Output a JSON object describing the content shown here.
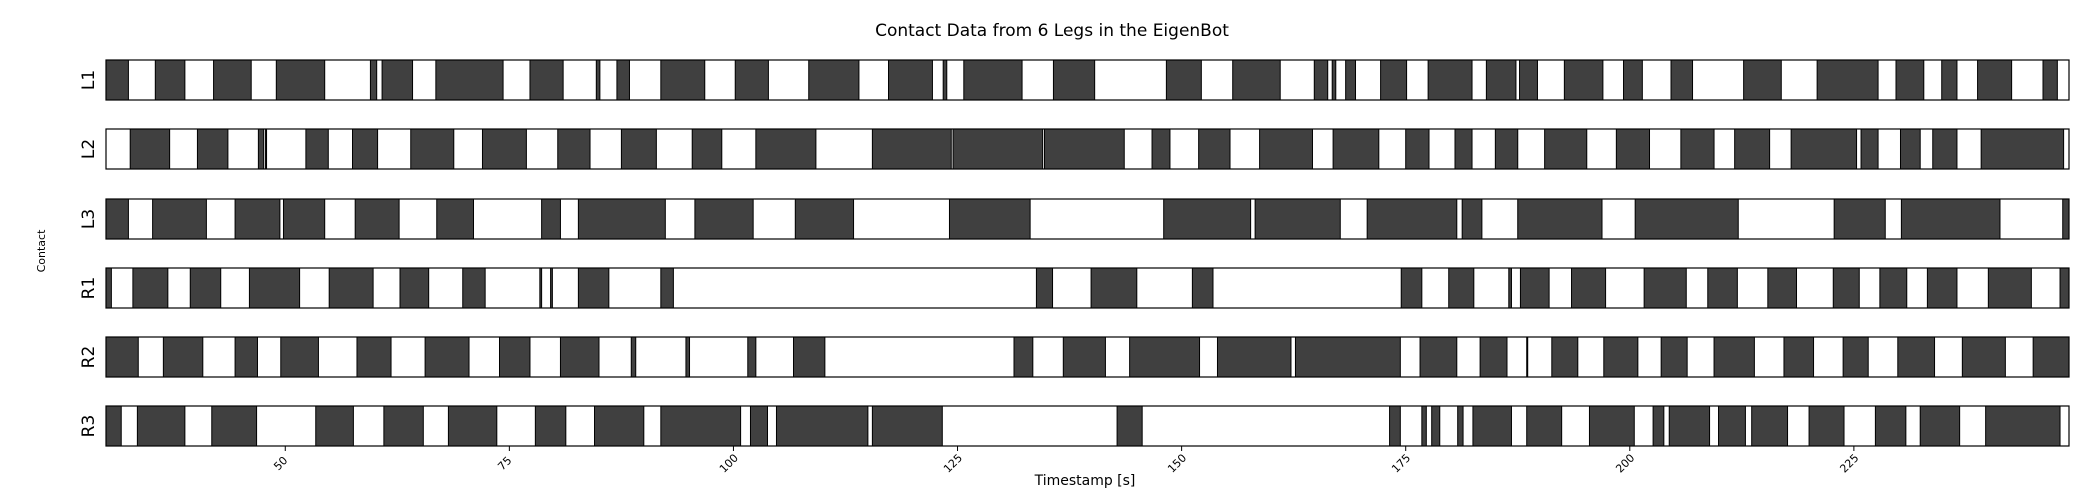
{
  "chart_data": {
    "type": "timeline",
    "title": "Contact Data from 6 Legs in the EigenBot",
    "xlabel": "Timestamp [s]",
    "ylabel": "Contact",
    "xlim": [
      30,
      249
    ],
    "xticks": [
      50,
      75,
      100,
      125,
      150,
      175,
      200,
      225
    ],
    "colors": {
      "contact": "#404040",
      "no_contact": "#ffffff",
      "border": "#000000"
    },
    "series": [
      {
        "name": "L1",
        "intervals": [
          [
            30.0,
            32.5
          ],
          [
            35.5,
            38.8
          ],
          [
            42.0,
            46.2
          ],
          [
            49.0,
            54.4
          ],
          [
            59.5,
            60.2
          ],
          [
            60.8,
            64.2
          ],
          [
            66.8,
            74.3
          ],
          [
            77.3,
            81.0
          ],
          [
            84.7,
            85.1
          ],
          [
            87.0,
            88.4
          ],
          [
            91.9,
            96.8
          ],
          [
            100.2,
            103.9
          ],
          [
            108.4,
            114.0
          ],
          [
            117.3,
            122.2
          ],
          [
            123.4,
            123.8
          ],
          [
            125.7,
            132.2
          ],
          [
            135.7,
            140.3
          ],
          [
            148.3,
            152.2
          ],
          [
            155.7,
            161.0
          ],
          [
            164.8,
            166.3
          ],
          [
            166.8,
            167.2
          ],
          [
            168.3,
            169.4
          ],
          [
            172.2,
            175.1
          ],
          [
            177.5,
            182.4
          ],
          [
            184.0,
            187.3
          ],
          [
            187.7,
            189.7
          ],
          [
            192.7,
            197.0
          ],
          [
            199.3,
            201.4
          ],
          [
            204.6,
            207.0
          ],
          [
            212.7,
            216.9
          ],
          [
            220.9,
            227.7
          ],
          [
            229.7,
            232.8
          ],
          [
            234.8,
            236.5
          ],
          [
            238.8,
            242.6
          ],
          [
            246.1,
            247.7
          ]
        ]
      },
      {
        "name": "L2",
        "intervals": [
          [
            32.7,
            37.1
          ],
          [
            40.2,
            43.6
          ],
          [
            47.0,
            47.6
          ],
          [
            47.8,
            47.9
          ],
          [
            52.3,
            54.8
          ],
          [
            57.5,
            60.3
          ],
          [
            64.0,
            68.8
          ],
          [
            72.0,
            76.9
          ],
          [
            80.4,
            84.0
          ],
          [
            87.5,
            91.4
          ],
          [
            95.4,
            98.7
          ],
          [
            102.5,
            109.2
          ],
          [
            115.5,
            124.3
          ],
          [
            124.5,
            134.5
          ],
          [
            134.7,
            143.6
          ],
          [
            146.7,
            148.7
          ],
          [
            151.9,
            155.4
          ],
          [
            158.7,
            164.6
          ],
          [
            166.9,
            172.0
          ],
          [
            175.0,
            177.6
          ],
          [
            180.5,
            182.4
          ],
          [
            185.0,
            187.5
          ],
          [
            190.5,
            195.2
          ],
          [
            198.5,
            202.2
          ],
          [
            205.7,
            209.4
          ],
          [
            211.7,
            215.6
          ],
          [
            218.0,
            225.3
          ],
          [
            225.8,
            227.7
          ],
          [
            230.2,
            232.4
          ],
          [
            233.8,
            236.5
          ],
          [
            239.2,
            248.4
          ]
        ]
      },
      {
        "name": "L3",
        "intervals": [
          [
            30.0,
            32.5
          ],
          [
            35.2,
            41.2
          ],
          [
            44.4,
            49.4
          ],
          [
            49.8,
            54.4
          ],
          [
            57.8,
            62.7
          ],
          [
            66.9,
            71.0
          ],
          [
            78.6,
            80.7
          ],
          [
            82.7,
            92.4
          ],
          [
            95.7,
            102.2
          ],
          [
            106.9,
            113.4
          ],
          [
            124.1,
            133.1
          ],
          [
            148.0,
            157.7
          ],
          [
            158.2,
            167.7
          ],
          [
            170.7,
            180.7
          ],
          [
            181.3,
            183.5
          ],
          [
            187.5,
            196.9
          ],
          [
            200.6,
            212.1
          ],
          [
            222.8,
            228.5
          ],
          [
            230.3,
            241.3
          ],
          [
            248.3,
            249.0
          ]
        ]
      },
      {
        "name": "R1",
        "intervals": [
          [
            30.0,
            30.6
          ],
          [
            33.0,
            36.9
          ],
          [
            39.4,
            42.8
          ],
          [
            46.0,
            51.6
          ],
          [
            54.9,
            59.8
          ],
          [
            62.8,
            66.0
          ],
          [
            69.8,
            72.3
          ],
          [
            78.4,
            78.6
          ],
          [
            79.6,
            79.8
          ],
          [
            82.7,
            86.1
          ],
          [
            91.9,
            93.3
          ],
          [
            133.8,
            135.6
          ],
          [
            139.9,
            145.0
          ],
          [
            151.2,
            153.5
          ],
          [
            174.5,
            176.8
          ],
          [
            179.8,
            182.6
          ],
          [
            186.5,
            186.8
          ],
          [
            187.8,
            191.0
          ],
          [
            193.5,
            197.3
          ],
          [
            201.6,
            206.3
          ],
          [
            208.7,
            212.0
          ],
          [
            215.4,
            218.6
          ],
          [
            222.7,
            225.6
          ],
          [
            227.9,
            230.9
          ],
          [
            233.2,
            236.5
          ],
          [
            240.0,
            244.8
          ],
          [
            248.0,
            249.0
          ]
        ]
      },
      {
        "name": "R2",
        "intervals": [
          [
            30.0,
            33.6
          ],
          [
            36.4,
            40.8
          ],
          [
            44.4,
            46.9
          ],
          [
            49.5,
            53.7
          ],
          [
            58.0,
            61.8
          ],
          [
            65.6,
            70.5
          ],
          [
            73.9,
            77.3
          ],
          [
            80.7,
            85.0
          ],
          [
            88.6,
            89.1
          ],
          [
            94.7,
            95.1
          ],
          [
            101.6,
            102.5
          ],
          [
            106.7,
            110.2
          ],
          [
            131.3,
            133.4
          ],
          [
            136.8,
            141.5
          ],
          [
            144.2,
            152.0
          ],
          [
            154.0,
            162.2
          ],
          [
            162.7,
            174.4
          ],
          [
            176.6,
            180.7
          ],
          [
            183.3,
            186.3
          ],
          [
            188.5,
            188.6
          ],
          [
            191.3,
            194.2
          ],
          [
            197.1,
            200.9
          ],
          [
            203.5,
            206.4
          ],
          [
            209.4,
            213.9
          ],
          [
            217.2,
            220.5
          ],
          [
            223.8,
            226.6
          ],
          [
            229.9,
            234.0
          ],
          [
            237.1,
            241.9
          ],
          [
            245.0,
            249.0
          ]
        ]
      },
      {
        "name": "R3",
        "intervals": [
          [
            30.0,
            31.7
          ],
          [
            33.5,
            38.8
          ],
          [
            41.8,
            46.8
          ],
          [
            53.4,
            57.6
          ],
          [
            61.0,
            65.4
          ],
          [
            68.2,
            73.6
          ],
          [
            77.9,
            81.3
          ],
          [
            84.5,
            90.0
          ],
          [
            91.9,
            100.8
          ],
          [
            101.9,
            103.8
          ],
          [
            104.8,
            115.0
          ],
          [
            115.5,
            123.3
          ],
          [
            142.8,
            145.6
          ],
          [
            173.2,
            174.4
          ],
          [
            176.8,
            177.3
          ],
          [
            177.9,
            178.8
          ],
          [
            180.8,
            181.4
          ],
          [
            182.5,
            186.8
          ],
          [
            188.5,
            192.4
          ],
          [
            195.5,
            200.5
          ],
          [
            202.6,
            203.8
          ],
          [
            204.4,
            208.9
          ],
          [
            209.9,
            212.9
          ],
          [
            213.6,
            217.6
          ],
          [
            220.0,
            223.9
          ],
          [
            227.4,
            230.8
          ],
          [
            232.4,
            236.8
          ],
          [
            239.7,
            248.0
          ]
        ]
      }
    ]
  }
}
